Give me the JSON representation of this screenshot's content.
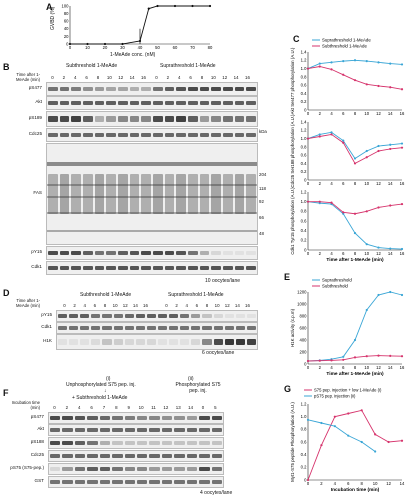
{
  "panelA": {
    "letter": "A",
    "ylabel": "GVBD (%)",
    "xlabel": "1-MeAde conc. (nM)",
    "chart_data": {
      "type": "line",
      "x": [
        0,
        10,
        20,
        30,
        40,
        45,
        50,
        60,
        70,
        80
      ],
      "y": [
        0,
        0,
        0,
        0,
        8,
        93,
        100,
        100,
        100,
        100
      ],
      "xlim": [
        0,
        80
      ],
      "ylim": [
        0,
        100
      ],
      "xticks": [
        "0",
        "10",
        "20",
        "30",
        "40",
        "50",
        "60",
        "70",
        "80"
      ],
      "yticks": [
        "0",
        "20",
        "40",
        "60",
        "80",
        "100"
      ],
      "xlabel": "1-MeAde conc. (nM)",
      "ylabel": "GVBD (%)"
    }
  },
  "panelB": {
    "letter": "B",
    "time_label": "Time after 1-MeAde (min)",
    "group1": "Subthreshold 1-MeAde",
    "group2": "Suprathreshold 1-MeAde",
    "lanes1": [
      "0",
      "2",
      "4",
      "6",
      "8",
      "10",
      "12",
      "14",
      "16"
    ],
    "lanes2": [
      "0",
      "2",
      "4",
      "6",
      "8",
      "10",
      "12",
      "14",
      "16"
    ],
    "rows": [
      "pS477",
      "Akt",
      "pS189",
      "Cdc25",
      "FAS",
      "pY15",
      "Cdk1"
    ],
    "markers": [
      "kDa",
      "204",
      "118",
      "92",
      "66",
      "48"
    ],
    "footer": "10 oocytes/lane"
  },
  "panelC": {
    "letter": "C",
    "legend": [
      "Suprathreshold 1-MeAde",
      "Subthreshold 1-MeAde"
    ],
    "colors": {
      "supra": "#3aa6d6",
      "sub": "#d6336c"
    },
    "xlabel": "Time after 1-MeAde (min)",
    "xticks": [
      "0",
      "2",
      "4",
      "6",
      "8",
      "10",
      "12",
      "14",
      "16"
    ],
    "plots": [
      {
        "ylabel": "Akt Ser477 phosphorylation (A.U.)",
        "yticks": [
          "0",
          "0.2",
          "0.4",
          "0.6",
          "0.8",
          "1.0",
          "1.2",
          "1.4"
        ],
        "ylim": [
          0,
          1.4
        ],
        "x": [
          0,
          2,
          4,
          6,
          8,
          10,
          12,
          14,
          16
        ],
        "supra": [
          1.0,
          1.12,
          1.15,
          1.18,
          1.2,
          1.18,
          1.15,
          1.12,
          1.1
        ],
        "sub": [
          1.0,
          1.05,
          0.98,
          0.85,
          0.72,
          0.62,
          0.58,
          0.55,
          0.5
        ]
      },
      {
        "ylabel": "Cdc25 Ser188 phosphorylation (A.U.)",
        "yticks": [
          "0",
          "0.2",
          "0.4",
          "0.6",
          "0.8",
          "1.0",
          "1.2",
          "1.4"
        ],
        "ylim": [
          0,
          1.4
        ],
        "x": [
          0,
          2,
          4,
          6,
          8,
          10,
          12,
          14,
          16
        ],
        "supra": [
          1.0,
          1.1,
          1.15,
          0.95,
          0.52,
          0.7,
          0.82,
          0.85,
          0.88
        ],
        "sub": [
          1.0,
          1.05,
          1.1,
          0.9,
          0.4,
          0.55,
          0.7,
          0.75,
          0.78
        ]
      },
      {
        "ylabel": "Cdk1 Tyr15 phosphorylation (A.U.)",
        "yticks": [
          "0",
          "0.2",
          "0.4",
          "0.6",
          "0.8",
          "1.0",
          "1.2"
        ],
        "ylim": [
          0,
          1.2
        ],
        "x": [
          0,
          2,
          4,
          6,
          8,
          10,
          12,
          14,
          16
        ],
        "supra": [
          1.0,
          0.97,
          0.95,
          0.75,
          0.35,
          0.12,
          0.05,
          0.03,
          0.02
        ],
        "sub": [
          1.0,
          1.0,
          0.98,
          0.78,
          0.75,
          0.8,
          0.88,
          0.92,
          0.95
        ]
      }
    ]
  },
  "panelD": {
    "letter": "D",
    "time_label": "Time after 1-MeAde (min)",
    "group1": "Subthreshold 1-MeAde",
    "group2": "Suprathreshold 1-MeAde",
    "lanes1": [
      "0",
      "2",
      "4",
      "6",
      "8",
      "10",
      "12",
      "14",
      "16"
    ],
    "lanes2": [
      "0",
      "2",
      "4",
      "6",
      "8",
      "10",
      "12",
      "14",
      "16"
    ],
    "rows": [
      "pY15",
      "Cdk1",
      "H1K"
    ],
    "footer": "6 oocytes/lane"
  },
  "panelE": {
    "letter": "E",
    "legend": [
      "Suprathreshold",
      "Subthreshold"
    ],
    "ylabel": "H1K activity (c.p.m)",
    "xlabel": "Time after 1-MeAde (min)",
    "xticks": [
      "0",
      "2",
      "4",
      "6",
      "8",
      "10",
      "12",
      "14",
      "16"
    ],
    "yticks": [
      "0",
      "200",
      "400",
      "600",
      "800",
      "1000",
      "1200"
    ],
    "chart_data": {
      "type": "line",
      "x": [
        0,
        2,
        4,
        6,
        8,
        10,
        12,
        14,
        16
      ],
      "series": [
        {
          "name": "Suprathreshold",
          "values": [
            50,
            60,
            80,
            120,
            400,
            900,
            1150,
            1200,
            1150
          ]
        },
        {
          "name": "Subthreshold",
          "values": [
            50,
            55,
            60,
            70,
            110,
            130,
            140,
            135,
            130
          ]
        }
      ],
      "ylim": [
        0,
        1200
      ],
      "xlim": [
        0,
        16
      ]
    }
  },
  "panelF": {
    "letter": "F",
    "label_i": "(i)",
    "label_i_text": "Unphosphorylated S75 pep. inj.",
    "label_ii": "(ii)",
    "label_ii_text": "Phosphorylated S75 pep. inj.",
    "sub_label": "+ Subthreshold 1-MeAde",
    "time_label": "Incubation time (min)",
    "lanes": [
      "0",
      "2",
      "4",
      "6",
      "7",
      "8",
      "9",
      "10",
      "11",
      "12",
      "13",
      "14",
      "0",
      "5"
    ],
    "rows": [
      "pS477",
      "Akt",
      "pS188",
      "Cdc25",
      "pS75 (S75-pep.)",
      "GST"
    ],
    "footer": "4 oocytes/lane"
  },
  "panelG": {
    "letter": "G",
    "legend": [
      "S75 pep. injection + low 1-MeAde (i)",
      "pS75 pep. injection (ii)"
    ],
    "ylabel": "Myt1-S75 peptide Phosphorylation (A.U.)",
    "xlabel": "Incubation time (min)",
    "xticks": [
      "0",
      "2",
      "4",
      "6",
      "8",
      "10",
      "12",
      "14"
    ],
    "yticks": [
      "0",
      "0.2",
      "0.4",
      "0.6",
      "0.8",
      "1.0",
      "1.2"
    ],
    "chart_data": {
      "type": "line",
      "x": [
        0,
        2,
        4,
        6,
        8,
        10,
        12,
        14
      ],
      "series": [
        {
          "name": "S75 pep. injection + low 1-MeAde (i)",
          "values": [
            0.0,
            0.55,
            1.0,
            1.05,
            1.1,
            0.72,
            0.6,
            0.62
          ]
        },
        {
          "name": "pS75 pep. injection (ii)",
          "values": [
            0.95,
            0.9,
            0.85,
            0.7,
            0.6,
            0.45,
            null,
            null
          ]
        }
      ],
      "ylim": [
        0,
        1.2
      ],
      "xlim": [
        0,
        14
      ]
    }
  }
}
